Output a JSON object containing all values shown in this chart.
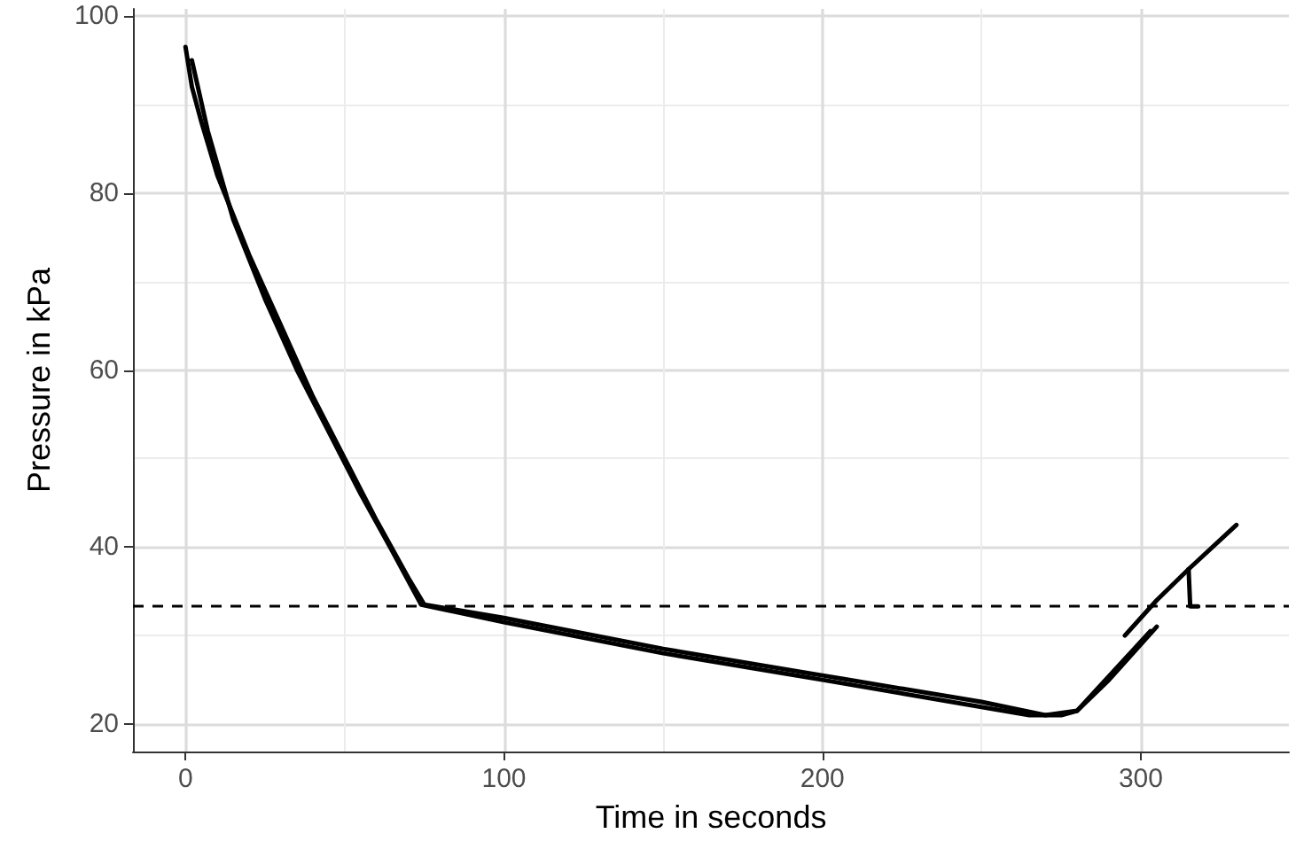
{
  "chart_data": {
    "type": "line",
    "xlabel": "Time in seconds",
    "ylabel": "Pressure in kPa",
    "xlim": [
      -16.5,
      346.5
    ],
    "xticks": [
      0,
      100,
      200,
      300
    ],
    "ylim": [
      16.9,
      100.8
    ],
    "yticks": [
      20,
      40,
      60,
      80,
      100
    ],
    "grid": true,
    "marker": "none",
    "line_style": "solid",
    "series": [
      {
        "color": "#000000",
        "x": [
          0,
          2,
          5,
          10,
          20,
          30,
          40,
          50,
          60,
          70,
          75,
          100,
          150,
          200,
          250,
          270,
          280,
          290,
          300,
          305
        ],
        "values": [
          96.5,
          92,
          88,
          82,
          73,
          65,
          57,
          50,
          43,
          36.5,
          33.5,
          32,
          28.5,
          25.5,
          22.5,
          21,
          21.5,
          25,
          29,
          31
        ]
      },
      {
        "color": "#000000",
        "x": [
          2,
          7,
          15,
          25,
          35,
          45,
          55,
          65,
          74,
          100,
          150,
          200,
          265,
          275,
          280,
          303
        ],
        "values": [
          95,
          87,
          77,
          68,
          60,
          53,
          46,
          39.5,
          33.5,
          31.5,
          28,
          25,
          21,
          21,
          21.5,
          30.5
        ]
      },
      {
        "color": "#000000",
        "x": [
          295,
          305,
          315,
          330
        ],
        "values": [
          30,
          34,
          37.5,
          42.5
        ]
      },
      {
        "color": "#000000",
        "x": [
          315,
          315.5,
          318
        ],
        "values": [
          37.5,
          33.3,
          33.3
        ]
      }
    ],
    "ref_lines": [
      {
        "axis": "y",
        "value": 33.4,
        "color": "#000000",
        "line_style": "dashed"
      }
    ]
  }
}
